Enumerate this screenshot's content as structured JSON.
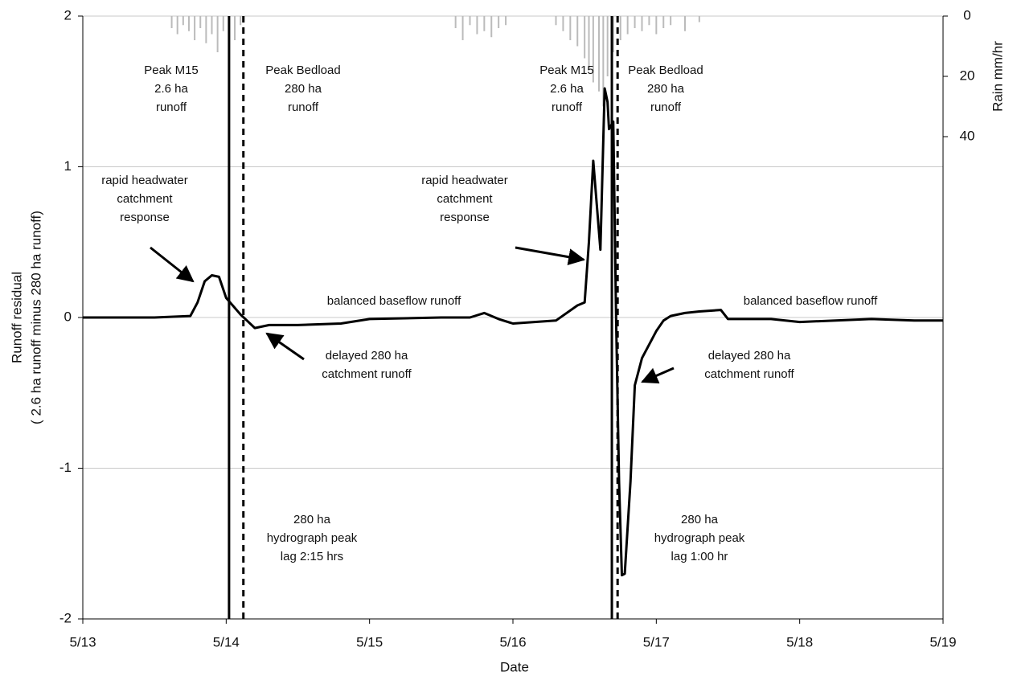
{
  "chart_data": {
    "type": "line",
    "xlabel": "Date",
    "ylabel": [
      "Runoff residual",
      "( 2.6 ha runoff minus 280 ha runoff)"
    ],
    "y2label": "Rain mm/hr",
    "xlim": [
      13,
      19
    ],
    "xticks": [
      {
        "value": 13,
        "label": "5/13"
      },
      {
        "value": 14,
        "label": "5/14"
      },
      {
        "value": 15,
        "label": "5/15"
      },
      {
        "value": 16,
        "label": "5/16"
      },
      {
        "value": 17,
        "label": "5/17"
      },
      {
        "value": 18,
        "label": "5/18"
      },
      {
        "value": 19,
        "label": "5/19"
      }
    ],
    "ylim": [
      -2,
      2
    ],
    "yticks": [
      -2,
      -1,
      0,
      1,
      2
    ],
    "y2lim": [
      0,
      200
    ],
    "y2ticks": [
      0,
      20,
      40
    ],
    "y2_inverted": true,
    "grid": true,
    "series": [
      {
        "type": "line",
        "color": "#000000",
        "x": [
          13,
          13.5,
          13.75,
          13.8,
          13.85,
          13.9,
          13.95,
          14.0,
          14.1,
          14.2,
          14.3,
          14.5,
          14.8,
          15.0,
          15.5,
          15.7,
          15.8,
          15.9,
          16.0,
          16.3,
          16.45,
          16.5,
          16.53,
          16.56,
          16.61,
          16.64,
          16.66,
          16.67,
          16.7,
          16.72,
          16.74,
          16.76,
          16.78,
          16.82,
          16.85,
          16.9,
          17.0,
          17.05,
          17.1,
          17.2,
          17.3,
          17.45,
          17.5,
          17.8,
          18.0,
          18.5,
          18.8,
          19.0
        ],
        "values": [
          0,
          0,
          0.01,
          0.1,
          0.24,
          0.28,
          0.27,
          0.13,
          0.02,
          -0.07,
          -0.05,
          -0.05,
          -0.04,
          -0.01,
          0,
          0,
          0.03,
          -0.01,
          -0.04,
          -0.02,
          0.08,
          0.1,
          0.5,
          1.04,
          0.45,
          1.52,
          1.43,
          1.25,
          1.3,
          -0.03,
          -1.09,
          -1.71,
          -1.7,
          -1.09,
          -0.45,
          -0.27,
          -0.09,
          -0.02,
          0.01,
          0.03,
          0.04,
          0.05,
          -0.01,
          -0.01,
          -0.03,
          -0.01,
          -0.02,
          -0.02
        ]
      },
      {
        "type": "bar",
        "axis": "y2",
        "color": "#bbbbbb",
        "x": [
          13.62,
          13.66,
          13.7,
          13.74,
          13.78,
          13.82,
          13.86,
          13.9,
          13.94,
          13.98,
          14.02,
          14.06,
          14.1,
          15.6,
          15.65,
          15.7,
          15.75,
          15.8,
          15.85,
          15.9,
          15.95,
          16.3,
          16.35,
          16.4,
          16.45,
          16.5,
          16.53,
          16.56,
          16.6,
          16.63,
          16.66,
          16.7,
          16.75,
          16.8,
          16.85,
          16.9,
          16.95,
          17.0,
          17.05,
          17.1,
          17.2,
          17.3
        ],
        "values": [
          4,
          6,
          3,
          5,
          8,
          4,
          9,
          6,
          12,
          5,
          15,
          8,
          3,
          4,
          8,
          3,
          6,
          5,
          7,
          4,
          3,
          3,
          5,
          8,
          10,
          14,
          18,
          22,
          25,
          30,
          20,
          12,
          8,
          6,
          4,
          5,
          3,
          6,
          4,
          3,
          5,
          2
        ]
      }
    ],
    "events": [
      {
        "x": 14.02,
        "dashed": false
      },
      {
        "x": 14.12,
        "dashed": true
      },
      {
        "x": 16.69,
        "dashed": false
      },
      {
        "x": 16.73,
        "dashed": true
      }
    ],
    "annotations": [
      [
        "Peak M15",
        "2.6 ha",
        "runoff"
      ],
      [
        "Peak Bedload",
        "280 ha",
        "runoff"
      ],
      [
        "Peak M15",
        "2.6 ha",
        "runoff"
      ],
      [
        "Peak Bedload",
        "280 ha",
        "runoff"
      ],
      [
        "rapid headwater",
        "catchment",
        "response"
      ],
      [
        "rapid headwater",
        "catchment",
        "response"
      ],
      [
        "balanced baseflow runoff"
      ],
      [
        "balanced baseflow runoff"
      ],
      [
        "delayed 280 ha",
        "catchment runoff"
      ],
      [
        "delayed 280 ha",
        "catchment runoff"
      ],
      [
        "280 ha",
        "hydrograph peak",
        "lag 2:15 hrs"
      ],
      [
        "280 ha",
        "hydrograph peak",
        "lag 1:00 hr"
      ]
    ]
  }
}
